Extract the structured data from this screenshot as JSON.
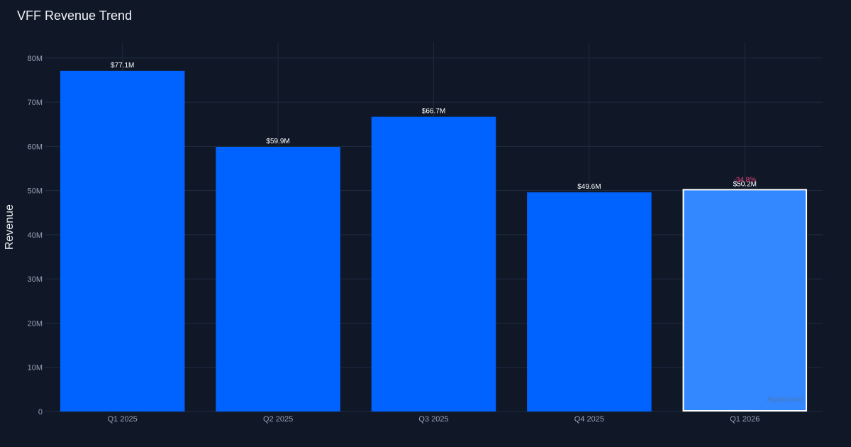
{
  "chart_data": {
    "type": "bar",
    "title": "VFF Revenue Trend",
    "ylabel": "Revenue",
    "xlabel": "",
    "categories": [
      "Q1 2025",
      "Q2 2025",
      "Q3 2025",
      "Q4 2025",
      "Q1 2026"
    ],
    "values": [
      77.1,
      59.9,
      66.7,
      49.6,
      50.2
    ],
    "value_labels": [
      "$77.1M",
      "$59.9M",
      "$66.7M",
      "$49.6M",
      "$50.2M"
    ],
    "highlighted_index": 4,
    "highlight_change_label": "-34.8%",
    "y_ticks": [
      0,
      10,
      20,
      30,
      40,
      50,
      60,
      70,
      80
    ],
    "y_tick_labels": [
      "0",
      "10M",
      "20M",
      "30M",
      "40M",
      "50M",
      "60M",
      "70M",
      "80M"
    ],
    "ylim": [
      0,
      83.5
    ],
    "grid": true,
    "watermark": "AlphaStreet",
    "colors": {
      "background": "#101828",
      "bar": "#0062ff",
      "bar_highlight": "#3388ff",
      "highlight_border": "#ffffff",
      "grid": "#1e2a3e",
      "tick_text": "#98a2b3",
      "change_negative": "#e8447a"
    }
  }
}
